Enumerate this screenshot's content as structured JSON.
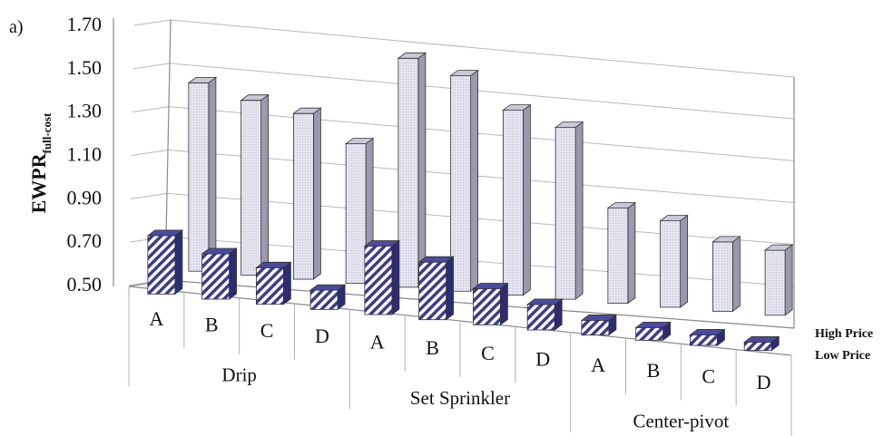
{
  "chart_data": {
    "type": "bar",
    "panel_label": "a)",
    "ylabel": "EWPR",
    "ylabel_subscript": "full-cost",
    "yticks": [
      "0.50",
      "0.70",
      "0.90",
      "1.10",
      "1.30",
      "1.50",
      "1.70"
    ],
    "ylim": [
      0.5,
      1.7
    ],
    "grid": true,
    "groups": [
      {
        "name": "Drip",
        "categories": [
          "A",
          "B",
          "C",
          "D"
        ]
      },
      {
        "name": "Set Sprinkler",
        "categories": [
          "A",
          "B",
          "C",
          "D"
        ]
      },
      {
        "name": "Center-pivot",
        "categories": [
          "A",
          "B",
          "C",
          "D"
        ]
      }
    ],
    "series": [
      {
        "name": "High Price",
        "color": "#dcdcec",
        "values": [
          1.37,
          1.31,
          1.27,
          1.15,
          1.57,
          1.51,
          1.37,
          1.31,
          0.95,
          0.91,
          0.83,
          0.81
        ]
      },
      {
        "name": "Low Price",
        "color": "#3b3b8f",
        "values": [
          0.77,
          0.71,
          0.67,
          0.59,
          0.82,
          0.77,
          0.67,
          0.62,
          0.57,
          0.56,
          0.55,
          0.54
        ]
      }
    ],
    "legend_position": "right"
  }
}
